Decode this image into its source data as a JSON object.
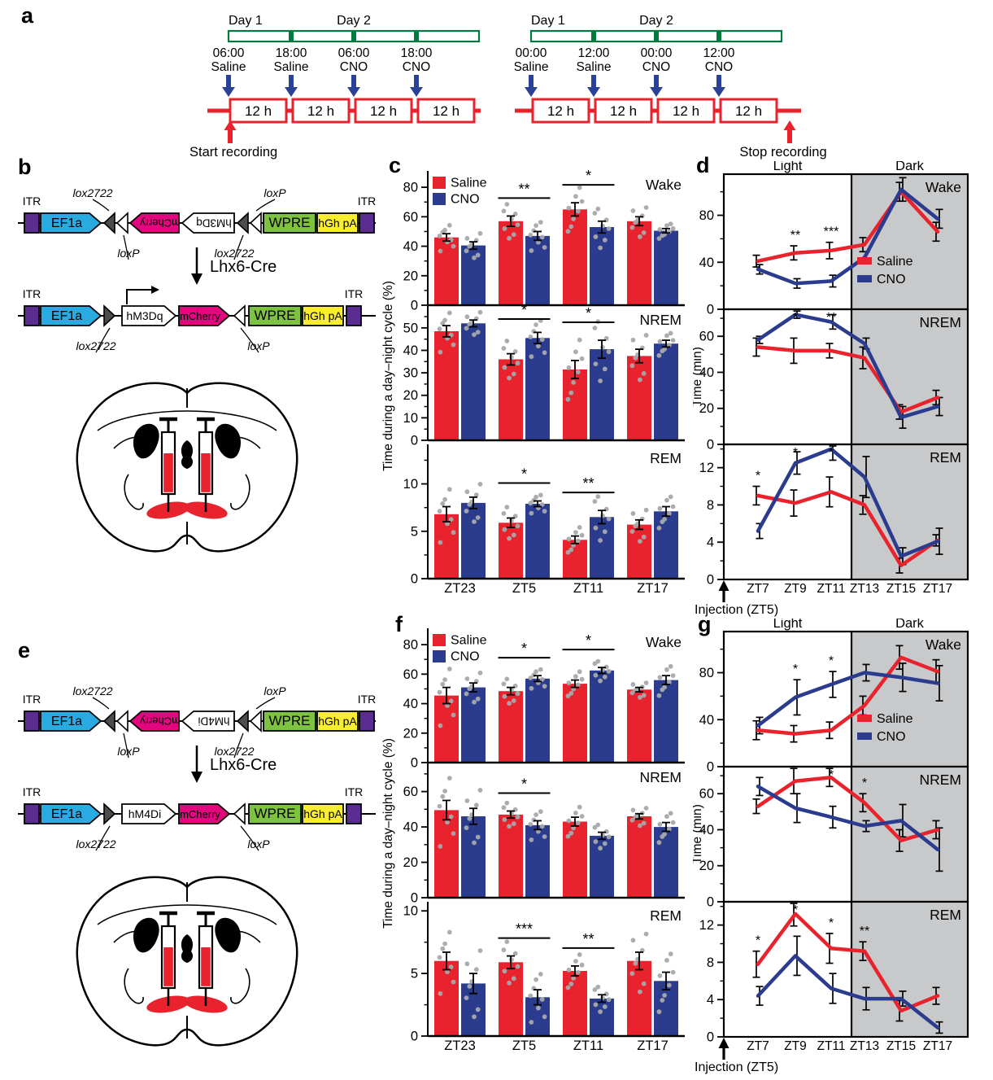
{
  "panel_labels": {
    "a": "a",
    "b": "b",
    "c": "c",
    "d": "d",
    "e": "e",
    "f": "f",
    "g": "g"
  },
  "colors": {
    "saline": "#e8232d",
    "cno": "#2b3c8f",
    "timeline_green": "#007a3e",
    "arrow_blue": "#2b4097",
    "dark_bg": "#c8c9ca",
    "dot_gray": "#a7a9ac",
    "ef1a": "#29abe2",
    "mcherry": "#e2067f",
    "wpre": "#7ec242",
    "hgh": "#f9ed32",
    "itr": "#5b2d90",
    "lox_dark": "#4d4d4f"
  },
  "timelines": [
    {
      "day1": "Day 1",
      "day2": "Day 2",
      "blocks": [
        "12 h",
        "12 h",
        "12 h",
        "12 h"
      ],
      "ticks": [
        {
          "time": "06:00",
          "drug": "Saline"
        },
        {
          "time": "18:00",
          "drug": "Saline"
        },
        {
          "time": "06:00",
          "drug": "CNO"
        },
        {
          "time": "18:00",
          "drug": "CNO"
        }
      ],
      "marker": {
        "text": "Start recording",
        "side": "start"
      }
    },
    {
      "day1": "Day 1",
      "day2": "Day 2",
      "blocks": [
        "12 h",
        "12 h",
        "12 h",
        "12 h"
      ],
      "ticks": [
        {
          "time": "00:00",
          "drug": "Saline"
        },
        {
          "time": "12:00",
          "drug": "Saline"
        },
        {
          "time": "00:00",
          "drug": "CNO"
        },
        {
          "time": "12:00",
          "drug": "CNO"
        }
      ],
      "marker": {
        "text": "Stop recording",
        "side": "end"
      }
    }
  ],
  "constructs": {
    "b": {
      "cre": "Lhx6-Cre",
      "itr": "ITR",
      "has_promoter_arrow": true,
      "before": {
        "promoter": "EF1a",
        "gene1": "mCherry",
        "gene2": "hM3Dq",
        "wpre": "WPRE",
        "polya": "hGh pA",
        "top_left": "lox2722",
        "top_right": "loxP",
        "bottom_left": "loxP",
        "bottom_right": "lox2722"
      },
      "after": {
        "promoter": "EF1a",
        "gene1": "hM3Dq",
        "gene2": "mCherry",
        "wpre": "WPRE",
        "polya": "hGh pA",
        "bottom_left": "lox2722",
        "bottom_right": "loxP"
      }
    },
    "e": {
      "cre": "Lhx6-Cre",
      "itr": "ITR",
      "has_promoter_arrow": false,
      "before": {
        "promoter": "EF1a",
        "gene1": "mCherry",
        "gene2": "hM4Di",
        "wpre": "WPRE",
        "polya": "hGh pA",
        "top_left": "lox2722",
        "top_right": "loxP",
        "bottom_left": "loxP",
        "bottom_right": "lox2722"
      },
      "after": {
        "promoter": "EF1a",
        "gene1": "hM4Di",
        "gene2": "mCherry",
        "wpre": "WPRE",
        "polya": "hGh pA",
        "bottom_left": "lox2722",
        "bottom_right": "loxP"
      }
    }
  },
  "chart_data": [
    {
      "panel": "c",
      "type": "bar",
      "group": "hM3Dq",
      "categories": [
        "ZT23",
        "ZT5",
        "ZT11",
        "ZT17"
      ],
      "ylabel": "Time during a day–night cycle (%)",
      "legend": [
        "Saline",
        "CNO"
      ],
      "subplots": [
        {
          "title": "Wake",
          "ylim": [
            0,
            90
          ],
          "yticks": [
            0,
            20,
            40,
            60,
            80
          ],
          "series": [
            {
              "name": "Saline",
              "values": [
                46,
                57,
                65,
                57
              ],
              "sem": [
                2.5,
                3.5,
                4.5,
                3
              ]
            },
            {
              "name": "CNO",
              "values": [
                40.5,
                47,
                53,
                50.5
              ],
              "sem": [
                2.5,
                3,
                4,
                1.5
              ]
            }
          ],
          "sig": [
            {
              "category": "ZT5",
              "label": "**"
            },
            {
              "category": "ZT11",
              "label": "*"
            }
          ]
        },
        {
          "title": "NREM",
          "ylim": [
            0,
            59
          ],
          "yticks": [
            0,
            10,
            20,
            30,
            40,
            50
          ],
          "series": [
            {
              "name": "Saline",
              "values": [
                48.5,
                36,
                31.5,
                37.5
              ],
              "sem": [
                2.5,
                2.5,
                4,
                3
              ]
            },
            {
              "name": "CNO",
              "values": [
                52,
                45.5,
                40.5,
                43
              ],
              "sem": [
                1.5,
                2.5,
                4,
                1.5
              ]
            }
          ],
          "sig": [
            {
              "category": "ZT5",
              "label": "*"
            },
            {
              "category": "ZT11",
              "label": "*"
            }
          ]
        },
        {
          "title": "REM",
          "ylim": [
            0,
            14
          ],
          "yticks": [
            0,
            5,
            10
          ],
          "series": [
            {
              "name": "Saline",
              "values": [
                6.8,
                5.9,
                4.1,
                5.7
              ],
              "sem": [
                0.8,
                0.5,
                0.4,
                0.5
              ]
            },
            {
              "name": "CNO",
              "values": [
                8,
                7.9,
                6.5,
                7.1
              ],
              "sem": [
                0.6,
                0.3,
                0.7,
                0.5
              ]
            }
          ],
          "sig": [
            {
              "category": "ZT5",
              "label": "*"
            },
            {
              "category": "ZT11",
              "label": "**"
            }
          ]
        }
      ]
    },
    {
      "panel": "d",
      "type": "line",
      "group": "hM3Dq",
      "x": [
        "ZT7",
        "ZT9",
        "ZT11",
        "ZT13",
        "ZT15",
        "ZT17"
      ],
      "ylabel": "Time (min)",
      "phase_labels": [
        "Light",
        "Dark"
      ],
      "injection": "Injection (ZT5)",
      "legend": [
        "Saline",
        "CNO"
      ],
      "subplots": [
        {
          "title": "Wake",
          "ylim": [
            0,
            115
          ],
          "yticks": [
            0,
            40,
            80
          ],
          "legend_here": true,
          "series": [
            {
              "name": "Saline",
              "values": [
                41,
                48,
                50,
                55,
                100,
                66
              ],
              "sem": [
                5,
                6,
                7,
                6,
                8,
                8
              ]
            },
            {
              "name": "CNO",
              "values": [
                34,
                22,
                24,
                44,
                102,
                77
              ],
              "sem": [
                4,
                4,
                5,
                5,
                10,
                8
              ]
            }
          ],
          "sig": [
            {
              "x": "ZT9",
              "label": "**"
            },
            {
              "x": "ZT11",
              "label": "***"
            }
          ]
        },
        {
          "title": "NREM",
          "ylim": [
            0,
            75
          ],
          "yticks": [
            0,
            20,
            40,
            60
          ],
          "series": [
            {
              "name": "Saline",
              "values": [
                54,
                52,
                52,
                48,
                18,
                26
              ],
              "sem": [
                5,
                7,
                4,
                6,
                4,
                4
              ]
            },
            {
              "name": "CNO",
              "values": [
                58,
                72,
                68,
                56,
                15,
                21
              ],
              "sem": [
                2,
                2,
                4,
                3,
                6,
                5
              ]
            }
          ],
          "sig": [
            {
              "x": "ZT9",
              "label": "*"
            },
            {
              "x": "ZT11",
              "label": "**"
            }
          ]
        },
        {
          "title": "REM",
          "ylim": [
            0,
            14.5
          ],
          "yticks": [
            0,
            4,
            8,
            12
          ],
          "series": [
            {
              "name": "Saline",
              "values": [
                9,
                8.2,
                9.4,
                8,
                1.5,
                4.2
              ],
              "sem": [
                1,
                1.4,
                1.6,
                1,
                0.8,
                0.6
              ]
            },
            {
              "name": "CNO",
              "values": [
                5.2,
                12.5,
                14,
                11,
                2.5,
                4.1
              ],
              "sem": [
                0.8,
                1.2,
                1.2,
                2.2,
                0.9,
                1.4
              ]
            }
          ],
          "sig": [
            {
              "x": "ZT7",
              "label": "*"
            },
            {
              "x": "ZT9",
              "label": "*"
            },
            {
              "x": "ZT11",
              "label": "*"
            }
          ]
        }
      ]
    },
    {
      "panel": "f",
      "type": "bar",
      "group": "hM4Di",
      "categories": [
        "ZT23",
        "ZT5",
        "ZT11",
        "ZT17"
      ],
      "ylabel": "Time during a day–night cycle (%)",
      "legend": [
        "Saline",
        "CNO"
      ],
      "subplots": [
        {
          "title": "Wake",
          "ylim": [
            0,
            90
          ],
          "yticks": [
            0,
            20,
            40,
            60,
            80
          ],
          "series": [
            {
              "name": "Saline",
              "values": [
                45.5,
                48.5,
                53.5,
                49.5
              ],
              "sem": [
                5.5,
                2.5,
                2.5,
                1.5
              ]
            },
            {
              "name": "CNO",
              "values": [
                51,
                57,
                62.5,
                56
              ],
              "sem": [
                3,
                2,
                2,
                3
              ]
            }
          ],
          "sig": [
            {
              "category": "ZT5",
              "label": "*"
            },
            {
              "category": "ZT11",
              "label": "*"
            }
          ]
        },
        {
          "title": "NREM",
          "ylim": [
            0,
            75
          ],
          "yticks": [
            0,
            20,
            40,
            60
          ],
          "series": [
            {
              "name": "Saline",
              "values": [
                49.5,
                47,
                43,
                46
              ],
              "sem": [
                5.5,
                2,
                2.5,
                1.5
              ]
            },
            {
              "name": "CNO",
              "values": [
                46,
                41,
                35,
                40
              ],
              "sem": [
                4.5,
                2.5,
                2,
                2.5
              ]
            }
          ],
          "sig": [
            {
              "category": "ZT5",
              "label": "*"
            }
          ]
        },
        {
          "title": "REM",
          "ylim": [
            0,
            10.6
          ],
          "yticks": [
            0,
            5,
            10
          ],
          "series": [
            {
              "name": "Saline",
              "values": [
                6,
                5.9,
                5.2,
                6
              ],
              "sem": [
                0.7,
                0.5,
                0.4,
                0.7
              ]
            },
            {
              "name": "CNO",
              "values": [
                4.2,
                3.1,
                3,
                4.4
              ],
              "sem": [
                0.8,
                0.6,
                0.3,
                0.7
              ]
            }
          ],
          "sig": [
            {
              "category": "ZT5",
              "label": "***"
            },
            {
              "category": "ZT11",
              "label": "**"
            }
          ]
        }
      ]
    },
    {
      "panel": "g",
      "type": "line",
      "group": "hM4Di",
      "x": [
        "ZT7",
        "ZT9",
        "ZT11",
        "ZT13",
        "ZT15",
        "ZT17"
      ],
      "ylabel": "Time (min)",
      "phase_labels": [
        "Light",
        "Dark"
      ],
      "injection": "Injection (ZT5)",
      "legend": [
        "Saline",
        "CNO"
      ],
      "subplots": [
        {
          "title": "Wake",
          "ylim": [
            0,
            115
          ],
          "yticks": [
            0,
            40,
            80
          ],
          "legend_here": true,
          "series": [
            {
              "name": "Saline",
              "values": [
                31,
                28,
                31,
                52,
                93,
                81
              ],
              "sem": [
                8,
                7,
                7,
                8,
                10,
                10
              ]
            },
            {
              "name": "CNO",
              "values": [
                35,
                59,
                70,
                80,
                76,
                71
              ],
              "sem": [
                7,
                15,
                11,
                7,
                12,
                15
              ]
            }
          ],
          "sig": [
            {
              "x": "ZT9",
              "label": "*"
            },
            {
              "x": "ZT11",
              "label": "*"
            }
          ]
        },
        {
          "title": "NREM",
          "ylim": [
            0,
            75
          ],
          "yticks": [
            0,
            20,
            40,
            60
          ],
          "series": [
            {
              "name": "Saline",
              "values": [
                53,
                67,
                69,
                55,
                34,
                40
              ],
              "sem": [
                4,
                7,
                5,
                5,
                6,
                5
              ]
            },
            {
              "name": "CNO",
              "values": [
                64,
                52,
                47,
                42,
                45,
                29
              ],
              "sem": [
                5,
                8,
                6,
                3,
                9,
                12
              ]
            }
          ],
          "sig": [
            {
              "x": "ZT11",
              "label": "*"
            },
            {
              "x": "ZT13",
              "label": "*"
            }
          ]
        },
        {
          "title": "REM",
          "ylim": [
            0,
            14.5
          ],
          "yticks": [
            0,
            4,
            8,
            12
          ],
          "series": [
            {
              "name": "Saline",
              "values": [
                7.8,
                13.2,
                9.5,
                9.2,
                2.8,
                4.4
              ],
              "sem": [
                1.4,
                1.3,
                1.6,
                1,
                1.1,
                0.9
              ]
            },
            {
              "name": "CNO",
              "values": [
                4.4,
                8.7,
                5.2,
                4.1,
                4.1,
                1
              ],
              "sem": [
                1,
                2.1,
                1.6,
                1.2,
                0.8,
                0.6
              ]
            }
          ],
          "sig": [
            {
              "x": "ZT7",
              "label": "*"
            },
            {
              "x": "ZT9",
              "label": "*"
            },
            {
              "x": "ZT11",
              "label": "*"
            },
            {
              "x": "ZT13",
              "label": "**"
            }
          ]
        }
      ]
    }
  ]
}
